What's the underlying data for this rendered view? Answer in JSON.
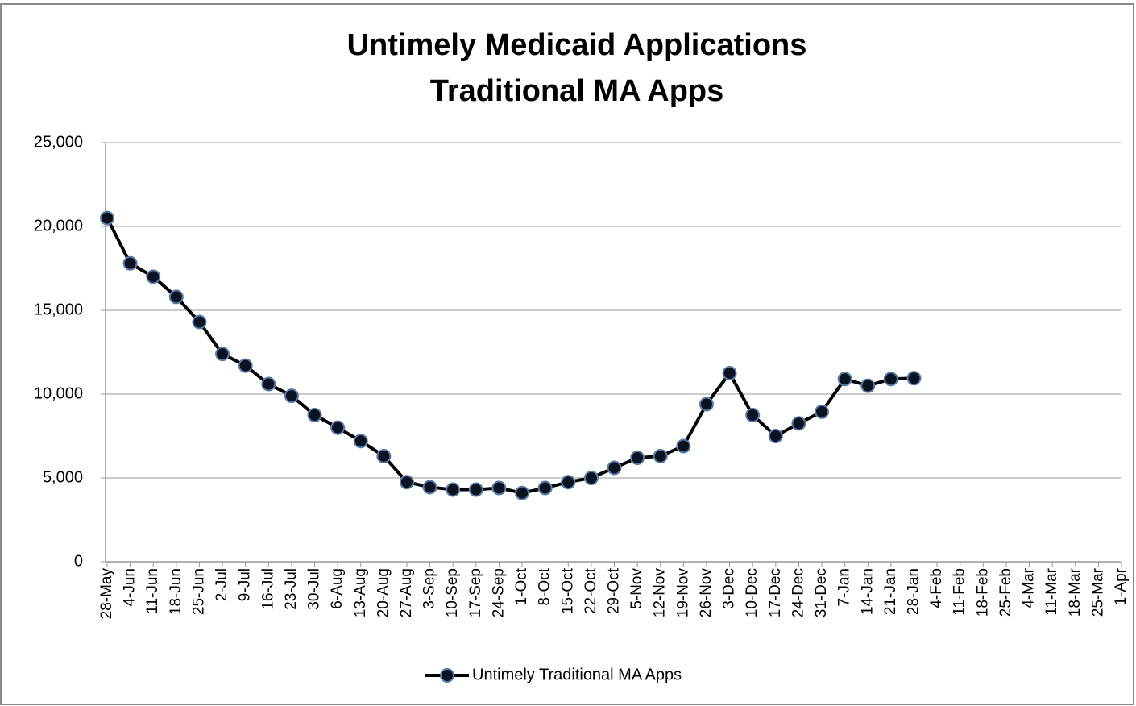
{
  "chart_data": {
    "type": "line",
    "title": "Untimely Medicaid Applications",
    "subtitle": "Traditional MA Apps",
    "categories": [
      "28-May",
      "4-Jun",
      "11-Jun",
      "18-Jun",
      "25-Jun",
      "2-Jul",
      "9-Jul",
      "16-Jul",
      "23-Jul",
      "30-Jul",
      "6-Aug",
      "13-Aug",
      "20-Aug",
      "27-Aug",
      "3-Sep",
      "10-Sep",
      "17-Sep",
      "24-Sep",
      "1-Oct",
      "8-Oct",
      "15-Oct",
      "22-Oct",
      "29-Oct",
      "5-Nov",
      "12-Nov",
      "19-Nov",
      "26-Nov",
      "3-Dec",
      "10-Dec",
      "17-Dec",
      "24-Dec",
      "31-Dec",
      "7-Jan",
      "14-Jan",
      "21-Jan",
      "28-Jan",
      "4-Feb",
      "11-Feb",
      "18-Feb",
      "25-Feb",
      "4-Mar",
      "11-Mar",
      "18-Mar",
      "25-Mar",
      "1-Apr"
    ],
    "series": [
      {
        "name": "Untimely Traditional MA Apps",
        "color": "#000000",
        "values": [
          20500,
          17800,
          17000,
          15800,
          14300,
          12400,
          11700,
          10600,
          9900,
          8750,
          8000,
          7200,
          6300,
          4750,
          4450,
          4300,
          4300,
          4400,
          4100,
          4400,
          4750,
          5000,
          5600,
          6200,
          6300,
          6900,
          9400,
          11250,
          8750,
          7500,
          8250,
          8950,
          10900,
          10500,
          10900,
          10950,
          null,
          null,
          null,
          null,
          null,
          null,
          null,
          null,
          null
        ]
      }
    ],
    "ylim": [
      0,
      25000
    ],
    "yticks": [
      0,
      {
        "value": 5000,
        "label": "5,000"
      },
      {
        "value": 10000,
        "label": "10,000"
      },
      {
        "value": 15000,
        "label": "15,000"
      },
      {
        "value": 20000,
        "label": "20,000"
      },
      {
        "value": 25000,
        "label": "25,000"
      }
    ],
    "grid": true,
    "legend": "bottom"
  }
}
